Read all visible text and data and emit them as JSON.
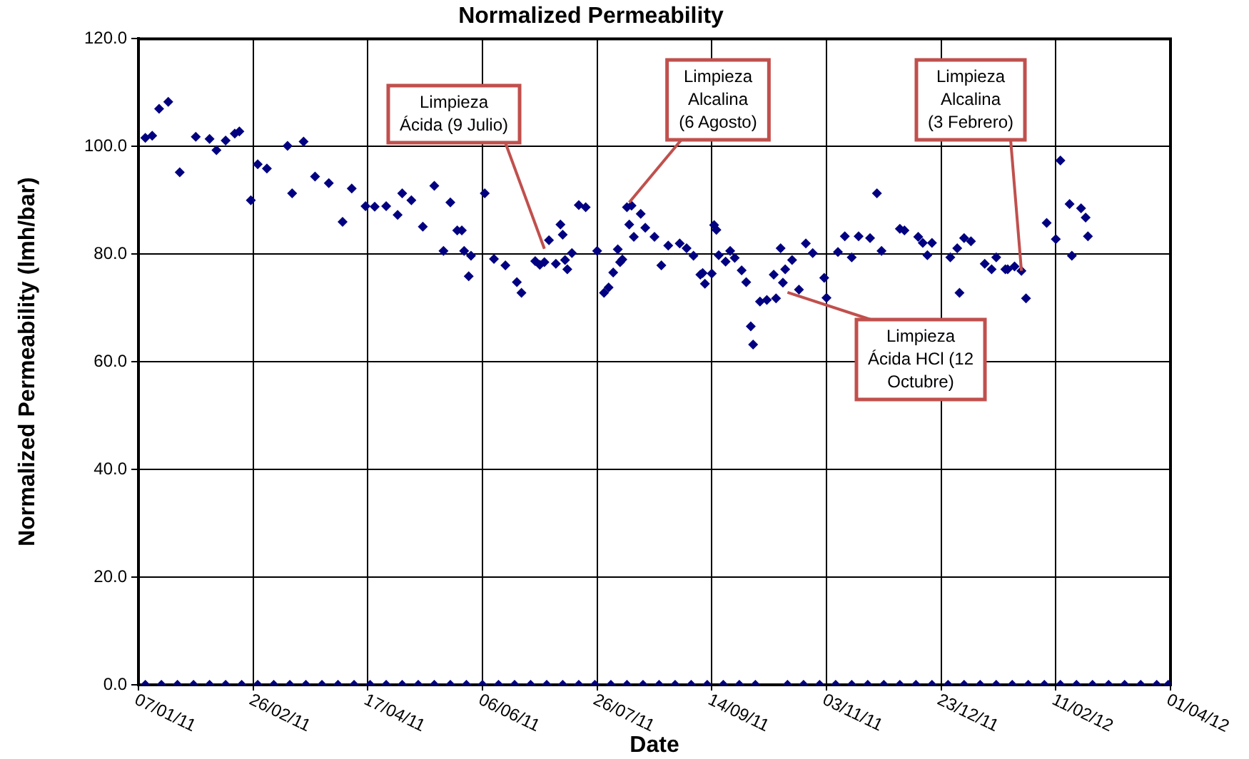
{
  "chart_data": {
    "type": "scatter",
    "title": "Normalized Permeability",
    "xlabel": "Date",
    "ylabel": "Normalized Permeability (lmh/bar)",
    "xlim": [
      "2011-01-07",
      "2012-04-01"
    ],
    "xticks": [
      {
        "value": "2011-01-07",
        "label": "07/01/11"
      },
      {
        "value": "2011-02-26",
        "label": "26/02/11"
      },
      {
        "value": "2011-04-17",
        "label": "17/04/11"
      },
      {
        "value": "2011-06-06",
        "label": "06/06/11"
      },
      {
        "value": "2011-07-26",
        "label": "26/07/11"
      },
      {
        "value": "2011-09-14",
        "label": "14/09/11"
      },
      {
        "value": "2011-11-03",
        "label": "03/11/11"
      },
      {
        "value": "2011-12-23",
        "label": "23/12/11"
      },
      {
        "value": "2012-02-11",
        "label": "11/02/12"
      },
      {
        "value": "2012-04-01",
        "label": "01/04/12"
      }
    ],
    "ylim": [
      0,
      120
    ],
    "yticks": [
      {
        "value": 0,
        "label": "0.0"
      },
      {
        "value": 20,
        "label": "20.0"
      },
      {
        "value": 40,
        "label": "40.0"
      },
      {
        "value": 60,
        "label": "60.0"
      },
      {
        "value": 80,
        "label": "80.0"
      },
      {
        "value": 100,
        "label": "100.0"
      },
      {
        "value": 120,
        "label": "120.0"
      }
    ],
    "grid": true,
    "legend": false,
    "marker": "diamond",
    "series": [
      {
        "color": "#000080",
        "x": [
          "2011-01-10",
          "2011-01-13",
          "2011-01-16",
          "2011-01-20",
          "2011-01-25",
          "2011-02-01",
          "2011-02-07",
          "2011-02-10",
          "2011-02-14",
          "2011-02-18",
          "2011-02-20",
          "2011-02-25",
          "2011-02-28",
          "2011-03-04",
          "2011-03-13",
          "2011-03-15",
          "2011-03-20",
          "2011-03-25",
          "2011-03-31",
          "2011-04-06",
          "2011-04-10",
          "2011-04-16",
          "2011-04-20",
          "2011-04-25",
          "2011-04-30",
          "2011-05-02",
          "2011-05-06",
          "2011-05-11",
          "2011-05-16",
          "2011-05-20",
          "2011-05-23",
          "2011-05-26",
          "2011-05-28",
          "2011-05-29",
          "2011-05-31",
          "2011-06-01",
          "2011-06-07",
          "2011-06-11",
          "2011-06-16",
          "2011-06-21",
          "2011-06-23",
          "2011-06-29",
          "2011-07-01",
          "2011-07-03",
          "2011-07-05",
          "2011-07-08",
          "2011-07-10",
          "2011-07-11",
          "2011-07-12",
          "2011-07-13",
          "2011-07-15",
          "2011-07-18",
          "2011-07-21",
          "2011-07-26",
          "2011-07-29",
          "2011-07-31",
          "2011-08-02",
          "2011-08-04",
          "2011-08-05",
          "2011-08-06",
          "2011-08-08",
          "2011-08-09",
          "2011-08-10",
          "2011-08-11",
          "2011-08-14",
          "2011-08-16",
          "2011-08-20",
          "2011-08-23",
          "2011-08-26",
          "2011-08-31",
          "2011-09-03",
          "2011-09-06",
          "2011-09-09",
          "2011-09-10",
          "2011-09-11",
          "2011-09-14",
          "2011-09-15",
          "2011-09-16",
          "2011-09-17",
          "2011-09-20",
          "2011-09-22",
          "2011-09-24",
          "2011-09-27",
          "2011-09-29",
          "2011-10-01",
          "2011-10-02",
          "2011-10-05",
          "2011-10-08",
          "2011-10-11",
          "2011-10-12",
          "2011-10-14",
          "2011-10-15",
          "2011-10-16",
          "2011-10-19",
          "2011-10-22",
          "2011-10-25",
          "2011-10-28",
          "2011-11-02",
          "2011-11-03",
          "2011-11-08",
          "2011-11-11",
          "2011-11-14",
          "2011-11-17",
          "2011-11-22",
          "2011-11-25",
          "2011-11-27",
          "2011-12-05",
          "2011-12-07",
          "2011-12-13",
          "2011-12-15",
          "2011-12-17",
          "2011-12-19",
          "2011-12-27",
          "2011-12-30",
          "2011-12-31",
          "2012-01-02",
          "2012-01-05",
          "2012-01-11",
          "2012-01-14",
          "2012-01-16",
          "2012-01-20",
          "2012-01-21",
          "2012-01-24",
          "2012-01-27",
          "2012-01-29",
          "2012-02-07",
          "2012-02-11",
          "2012-02-13",
          "2012-02-17",
          "2012-02-18",
          "2012-02-22",
          "2012-02-24",
          "2012-02-25"
        ],
        "values": [
          101.6,
          102.0,
          107.0,
          108.3,
          95.2,
          101.8,
          101.4,
          99.3,
          101.1,
          102.4,
          102.8,
          90.0,
          96.7,
          95.9,
          100.1,
          91.3,
          100.9,
          94.4,
          93.2,
          86.0,
          92.2,
          88.9,
          88.8,
          88.9,
          87.3,
          91.3,
          90.0,
          85.1,
          92.7,
          80.6,
          89.6,
          84.4,
          84.4,
          80.6,
          75.9,
          79.7,
          91.3,
          79.1,
          77.9,
          74.8,
          72.8,
          78.7,
          78.0,
          78.5,
          82.6,
          78.2,
          85.5,
          83.6,
          78.9,
          77.2,
          80.2,
          89.1,
          88.7,
          80.6,
          72.8,
          73.8,
          76.6,
          80.9,
          78.5,
          79.0,
          88.7,
          85.5,
          89.0,
          83.2,
          87.5,
          84.9,
          83.2,
          77.9,
          81.6,
          82.0,
          81.1,
          79.7,
          76.2,
          76.5,
          74.5,
          76.4,
          85.4,
          84.5,
          79.8,
          78.6,
          80.6,
          79.3,
          77.0,
          74.8,
          66.6,
          63.2,
          71.2,
          71.5,
          76.2,
          71.8,
          81.1,
          74.7,
          77.2,
          78.9,
          73.4,
          82.0,
          80.2,
          75.6,
          71.9,
          80.4,
          83.3,
          79.4,
          83.3,
          83.0,
          91.3,
          80.6,
          84.7,
          84.4,
          83.2,
          82.1,
          79.8,
          82.1,
          79.4,
          81.1,
          72.8,
          83.0,
          82.4,
          78.2,
          77.2,
          79.4,
          77.2,
          77.2,
          77.7,
          76.9,
          71.8,
          85.8,
          82.8,
          97.4,
          89.3,
          79.7,
          88.5,
          86.8,
          83.3
        ]
      },
      {
        "color": "#000080",
        "x": [
          "2011-01-10",
          "2011-01-17",
          "2011-01-24",
          "2011-01-31",
          "2011-02-07",
          "2011-02-14",
          "2011-02-21",
          "2011-02-28",
          "2011-03-07",
          "2011-03-14",
          "2011-03-21",
          "2011-03-28",
          "2011-04-04",
          "2011-04-11",
          "2011-04-18",
          "2011-04-25",
          "2011-05-02",
          "2011-05-09",
          "2011-05-16",
          "2011-05-23",
          "2011-05-30",
          "2011-06-06",
          "2011-06-13",
          "2011-06-20",
          "2011-06-27",
          "2011-07-04",
          "2011-07-11",
          "2011-07-18",
          "2011-07-25",
          "2011-08-01",
          "2011-08-08",
          "2011-08-15",
          "2011-08-22",
          "2011-08-29",
          "2011-09-05",
          "2011-09-12",
          "2011-09-19",
          "2011-09-26",
          "2011-10-03",
          "2011-10-17",
          "2011-10-24",
          "2011-10-31",
          "2011-11-07",
          "2011-11-14",
          "2011-11-21",
          "2011-11-28",
          "2011-12-05",
          "2011-12-12",
          "2011-12-19",
          "2011-12-26",
          "2012-01-02",
          "2012-01-09",
          "2012-01-16",
          "2012-01-23",
          "2012-01-30",
          "2012-02-06",
          "2012-02-13",
          "2012-02-20",
          "2012-02-27",
          "2012-03-05",
          "2012-03-12",
          "2012-03-19",
          "2012-03-26",
          "2012-03-31"
        ],
        "values": [
          0,
          0,
          0,
          0,
          0,
          0,
          0,
          0,
          0,
          0,
          0,
          0,
          0,
          0,
          0,
          0,
          0,
          0,
          0,
          0,
          0,
          0,
          0,
          0,
          0,
          0,
          0,
          0,
          0,
          0,
          0,
          0,
          0,
          0,
          0,
          0,
          0,
          0,
          0,
          0,
          0,
          0,
          0,
          0,
          0,
          0,
          0,
          0,
          0,
          0,
          0,
          0,
          0,
          0,
          0,
          0,
          0,
          0,
          0,
          0,
          0,
          0,
          0,
          0
        ]
      }
    ],
    "annotations": [
      {
        "text": "Limpieza\nÁcida (9 Julio)",
        "x": "2011-07-03",
        "y": 81
      },
      {
        "text": "Limpieza\nAlcalina\n(6 Agosto)",
        "x": "2011-08-09",
        "y": 89.6
      },
      {
        "text": "Limpieza\nAlcalina\n(3 Febrero)",
        "x": "2012-01-27",
        "y": 76.9
      },
      {
        "text": "Limpieza\nÁcida HCl (12\nOctubre)",
        "x": "2011-10-17",
        "y": 72.9
      }
    ]
  }
}
